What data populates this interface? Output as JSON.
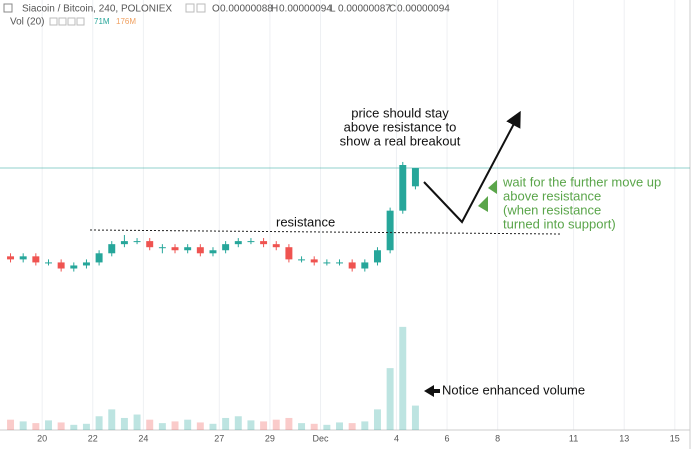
{
  "chart_data": {
    "type": "candlestick",
    "title": "Siacoin / Bitcoin, 240, POLONIEX",
    "ohlc_legend": [
      {
        "label": "O",
        "value": "0.00000088"
      },
      {
        "label": "H",
        "value": "0.00000094"
      },
      {
        "label": "L",
        "value": "0.00000087"
      },
      {
        "label": "C",
        "value": "0.00000094"
      }
    ],
    "volume_legend": {
      "label": "Vol (20)",
      "values": [
        "71M",
        "176M"
      ]
    },
    "x": [
      18.75,
      19.25,
      19.75,
      20.25,
      20.75,
      21.25,
      21.75,
      22.25,
      22.75,
      23.25,
      23.75,
      24.25,
      24.75,
      25.25,
      25.75,
      26.25,
      26.75,
      27.25,
      27.75,
      28.25,
      28.75,
      29.25,
      29.75,
      30.25,
      30.75,
      31.25,
      31.75,
      32.25,
      32.75,
      33.25,
      33.75,
      34.25,
      34.75
    ],
    "open": [
      6.5e-07,
      6.4e-07,
      6.5e-07,
      6.3e-07,
      6.3e-07,
      6.1e-07,
      6.2e-07,
      6.3e-07,
      6.6e-07,
      6.9e-07,
      7e-07,
      7e-07,
      6.8e-07,
      6.8e-07,
      6.7e-07,
      6.8e-07,
      6.6e-07,
      6.7e-07,
      6.9e-07,
      7e-07,
      7e-07,
      6.9e-07,
      6.8e-07,
      6.4e-07,
      6.4e-07,
      6.3e-07,
      6.3e-07,
      6.3e-07,
      6.1e-07,
      6.3e-07,
      6.7e-07,
      8e-07,
      8.8e-07
    ],
    "high": [
      6.6e-07,
      6.6e-07,
      6.6e-07,
      6.4e-07,
      6.4e-07,
      6.3e-07,
      6.4e-07,
      6.7e-07,
      7e-07,
      7.2e-07,
      7.1e-07,
      7.1e-07,
      6.9e-07,
      6.9e-07,
      6.9e-07,
      6.9e-07,
      6.8e-07,
      7e-07,
      7.1e-07,
      7.1e-07,
      7.1e-07,
      7e-07,
      6.9e-07,
      6.5e-07,
      6.5e-07,
      6.4e-07,
      6.4e-07,
      6.4e-07,
      6.4e-07,
      6.8e-07,
      8.1e-07,
      9.6e-07,
      9.4e-07
    ],
    "low": [
      6.3e-07,
      6.3e-07,
      6.2e-07,
      6.2e-07,
      6e-07,
      6e-07,
      6.1e-07,
      6.2e-07,
      6.5e-07,
      6.8e-07,
      6.9e-07,
      6.7e-07,
      6.6e-07,
      6.6e-07,
      6.6e-07,
      6.5e-07,
      6.5e-07,
      6.6e-07,
      6.8e-07,
      6.9e-07,
      6.8e-07,
      6.7e-07,
      6.3e-07,
      6.3e-07,
      6.2e-07,
      6.2e-07,
      6.2e-07,
      6e-07,
      6e-07,
      6.2e-07,
      6.6e-07,
      7.9e-07,
      8.7e-07
    ],
    "close": [
      6.4e-07,
      6.5e-07,
      6.3e-07,
      6.3e-07,
      6.1e-07,
      6.2e-07,
      6.3e-07,
      6.6e-07,
      6.9e-07,
      7e-07,
      7e-07,
      6.8e-07,
      6.8e-07,
      6.7e-07,
      6.8e-07,
      6.6e-07,
      6.7e-07,
      6.9e-07,
      7e-07,
      7e-07,
      6.9e-07,
      6.8e-07,
      6.4e-07,
      6.4e-07,
      6.3e-07,
      6.3e-07,
      6.3e-07,
      6.1e-07,
      6.3e-07,
      6.7e-07,
      8e-07,
      9.5e-07,
      9.4e-07
    ],
    "volume": [
      30,
      25,
      20,
      28,
      22,
      15,
      18,
      40,
      60,
      35,
      45,
      30,
      20,
      25,
      30,
      22,
      18,
      35,
      40,
      28,
      25,
      30,
      35,
      20,
      18,
      15,
      22,
      20,
      25,
      60,
      180,
      300,
      71
    ],
    "up_color": "#26a69a",
    "down_color": "#ef5350",
    "xlim": [
      18.65,
      45.6
    ],
    "ylim": [
      5e-07,
      1.4e-06
    ],
    "volume_ylim": [
      0,
      320
    ],
    "xticks": [
      20,
      22,
      24,
      27,
      29,
      {
        "value": 31,
        "label": "Dec"
      },
      {
        "value": 34,
        "label": "4"
      },
      {
        "value": 36,
        "label": "6"
      },
      {
        "value": 38,
        "label": "8"
      },
      {
        "value": 41,
        "label": "11"
      },
      {
        "value": 43,
        "label": "13"
      },
      {
        "value": 45,
        "label": "15"
      }
    ],
    "grid": true,
    "annotations": {
      "breakout": [
        "price should stay",
        "above resistance to",
        "show a real breakout"
      ],
      "resistance": "resistance",
      "wait": [
        "wait for the further move up",
        "above resistance",
        "(when resistance",
        "turned into support)"
      ],
      "volume": "Notice enhanced volume"
    }
  }
}
